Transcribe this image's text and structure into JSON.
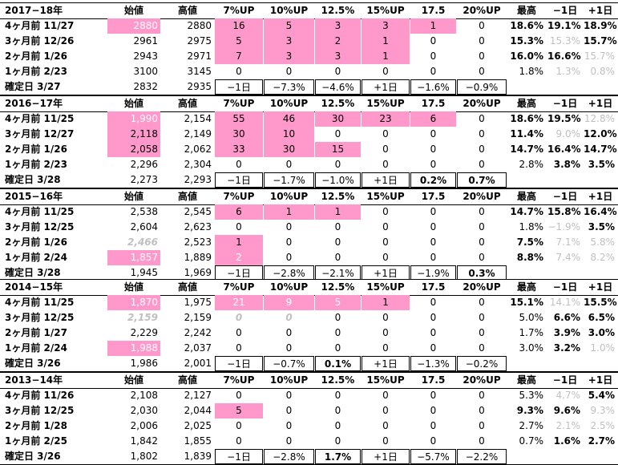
{
  "headers": [
    "始値",
    "高値",
    "7%UP",
    "10%UP",
    "12.5%",
    "15%UP",
    "17.5",
    "20%UP",
    "最高",
    "−1日",
    "+1日"
  ],
  "blocks": [
    {
      "year": "2017−18年",
      "rows": [
        {
          "label": "4ヶ月前 11/27",
          "open": "2880",
          "high": "2880",
          "u7": "16",
          "u10": "5",
          "u125": "3",
          "u15": "3",
          "u175": "1",
          "u20": "0",
          "max": "18.6%",
          "m1": "19.1%",
          "p1": "18.9%"
        },
        {
          "label": "3ヶ月前 12/26",
          "open": "2961",
          "high": "2975",
          "u7": "5",
          "u10": "3",
          "u125": "2",
          "u15": "1",
          "u175": "0",
          "u20": "0",
          "max": "15.3%",
          "m1": "15.3%",
          "p1": "15.7%"
        },
        {
          "label": "2ヶ月前 1/26",
          "open": "2943",
          "high": "2971",
          "u7": "7",
          "u10": "3",
          "u125": "3",
          "u15": "1",
          "u175": "0",
          "u20": "0",
          "max": "16.0%",
          "m1": "16.6%",
          "p1": "15.7%"
        },
        {
          "label": "1ヶ月前 2/23",
          "open": "3100",
          "high": "3145",
          "u7": "0",
          "u10": "0",
          "u125": "0",
          "u15": "0",
          "u175": "0",
          "u20": "0",
          "max": "1.8%",
          "m1": "1.3%",
          "p1": "0.8%"
        }
      ],
      "confirm": {
        "label": "確定日 3/27",
        "open": "2832",
        "high": "2935",
        "u7": "−1日",
        "u10": "−7.3%",
        "u125": "−4.6%",
        "u15": "+1日",
        "u175": "−1.6%",
        "u20": "−0.9%"
      }
    },
    {
      "year": "2016−17年",
      "rows": [
        {
          "label": "4ヶ月前 11/25",
          "open": "1,990",
          "high": "2,154",
          "u7": "55",
          "u10": "46",
          "u125": "30",
          "u15": "23",
          "u175": "6",
          "u20": "0",
          "max": "18.6%",
          "m1": "19.5%",
          "p1": "12.8%"
        },
        {
          "label": "3ヶ月前 12/27",
          "open": "2,118",
          "high": "2,149",
          "u7": "30",
          "u10": "10",
          "u125": "0",
          "u15": "0",
          "u175": "0",
          "u20": "0",
          "max": "11.4%",
          "m1": "9.0%",
          "p1": "12.0%"
        },
        {
          "label": "2ヶ月前 1/26",
          "open": "2,058",
          "high": "2,062",
          "u7": "33",
          "u10": "30",
          "u125": "15",
          "u15": "0",
          "u175": "0",
          "u20": "0",
          "max": "14.7%",
          "m1": "16.4%",
          "p1": "14.7%"
        },
        {
          "label": "1ヶ月前 2/23",
          "open": "2,296",
          "high": "2,304",
          "u7": "0",
          "u10": "0",
          "u125": "0",
          "u15": "0",
          "u175": "0",
          "u20": "0",
          "max": "2.8%",
          "m1": "3.8%",
          "p1": "3.5%"
        }
      ],
      "confirm": {
        "label": "確定日 3/28",
        "open": "2,273",
        "high": "2,293",
        "u7": "−1日",
        "u10": "−1.7%",
        "u125": "−1.0%",
        "u15": "+1日",
        "u175": "0.2%",
        "u20": "0.7%"
      }
    },
    {
      "year": "2015−16年",
      "rows": [
        {
          "label": "4ヶ月前 11/25",
          "open": "2,538",
          "high": "2,545",
          "u7": "6",
          "u10": "1",
          "u125": "1",
          "u15": "0",
          "u175": "0",
          "u20": "0",
          "max": "14.7%",
          "m1": "15.8%",
          "p1": "16.4%"
        },
        {
          "label": "3ヶ月前 12/25",
          "open": "2,604",
          "high": "2,623",
          "u7": "0",
          "u10": "0",
          "u125": "0",
          "u15": "0",
          "u175": "0",
          "u20": "0",
          "max": "1.8%",
          "m1": "−1.9%",
          "p1": "3.5%"
        },
        {
          "label": "2ヶ月前 1/26",
          "open": "2,466",
          "high": "2,523",
          "u7": "1",
          "u10": "0",
          "u125": "0",
          "u15": "0",
          "u175": "0",
          "u20": "0",
          "max": "7.5%",
          "m1": "7.1%",
          "p1": "5.8%"
        },
        {
          "label": "1ヶ月前 2/24",
          "open": "1,857",
          "high": "1,889",
          "u7": "2",
          "u10": "0",
          "u125": "0",
          "u15": "0",
          "u175": "0",
          "u20": "0",
          "max": "8.8%",
          "m1": "7.4%",
          "p1": "8.2%"
        }
      ],
      "confirm": {
        "label": "確定日 3/28",
        "open": "1,945",
        "high": "1,969",
        "u7": "−1日",
        "u10": "−2.8%",
        "u125": "−2.1%",
        "u15": "+1日",
        "u175": "−1.9%",
        "u20": "0.3%"
      }
    },
    {
      "year": "2014−15年",
      "rows": [
        {
          "label": "4ヶ月前 11/25",
          "open": "1,870",
          "high": "1,975",
          "u7": "21",
          "u10": "9",
          "u125": "5",
          "u15": "1",
          "u175": "0",
          "u20": "0",
          "max": "15.1%",
          "m1": "14.1%",
          "p1": "15.5%"
        },
        {
          "label": "3ヶ月前 12/25",
          "open": "2,159",
          "high": "2,159",
          "u7": "0",
          "u10": "0",
          "u125": "0",
          "u15": "0",
          "u175": "0",
          "u20": "0",
          "max": "5.0%",
          "m1": "6.6%",
          "p1": "6.5%"
        },
        {
          "label": "2ヶ月前 1/27",
          "open": "2,229",
          "high": "2,242",
          "u7": "0",
          "u10": "0",
          "u125": "0",
          "u15": "0",
          "u175": "0",
          "u20": "0",
          "max": "1.7%",
          "m1": "3.9%",
          "p1": "3.0%"
        },
        {
          "label": "1ヶ月前 2/24",
          "open": "1,988",
          "high": "2,037",
          "u7": "0",
          "u10": "0",
          "u125": "0",
          "u15": "0",
          "u175": "0",
          "u20": "0",
          "max": "3.0%",
          "m1": "3.2%",
          "p1": "1.0%"
        }
      ],
      "confirm": {
        "label": "確定日 3/26",
        "open": "1,986",
        "high": "2,001",
        "u7": "−1日",
        "u10": "−0.7%",
        "u125": "0.1%",
        "u15": "+1日",
        "u175": "−1.3%",
        "u20": "−0.2%"
      }
    },
    {
      "year": "2013−14年",
      "rows": [
        {
          "label": "4ヶ月前 11/26",
          "open": "2,108",
          "high": "2,127",
          "u7": "0",
          "u10": "0",
          "u125": "0",
          "u15": "0",
          "u175": "0",
          "u20": "0",
          "max": "5.3%",
          "m1": "4.7%",
          "p1": "5.4%"
        },
        {
          "label": "3ヶ月前 12/25",
          "open": "2,030",
          "high": "2,044",
          "u7": "5",
          "u10": "0",
          "u125": "0",
          "u15": "0",
          "u175": "0",
          "u20": "0",
          "max": "9.3%",
          "m1": "9.6%",
          "p1": "9.3%"
        },
        {
          "label": "2ヶ月前 1/28",
          "open": "2,006",
          "high": "2,025",
          "u7": "0",
          "u10": "0",
          "u125": "0",
          "u15": "0",
          "u175": "0",
          "u20": "0",
          "max": "2.7%",
          "m1": "2.1%",
          "p1": "2.5%"
        },
        {
          "label": "1ヶ月前 2/25",
          "open": "1,842",
          "high": "1,855",
          "u7": "0",
          "u10": "0",
          "u125": "0",
          "u15": "0",
          "u175": "0",
          "u20": "0",
          "max": "0.7%",
          "m1": "1.6%",
          "p1": "2.7%"
        }
      ],
      "confirm": {
        "label": "確定日 3/26",
        "open": "1,802",
        "high": "1,839",
        "u7": "−1日",
        "u10": "−2.8%",
        "u125": "1.7%",
        "u15": "+1日",
        "u175": "−5.7%",
        "u20": "−2.2%"
      }
    }
  ],
  "colors": {
    "pink": "#ff99cc",
    "gray": "#c0c0c0",
    "grid": "#d9d9d9"
  }
}
